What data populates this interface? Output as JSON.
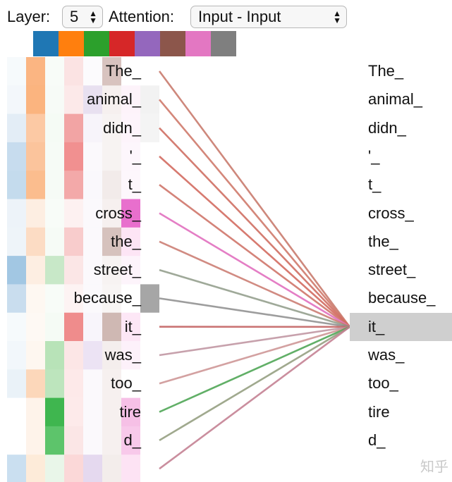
{
  "controls": {
    "layer_label": "Layer:",
    "layer_value": "5",
    "attention_label": "Attention:",
    "attention_value": "Input - Input"
  },
  "head_colors": [
    "#1f77b4",
    "#ff7f0e",
    "#2ca02c",
    "#d62728",
    "#9467bd",
    "#8c564b",
    "#e377c2",
    "#7f7f7f"
  ],
  "tokens_left": [
    "The_",
    "animal_",
    "didn_",
    "'_",
    "t_",
    "cross_",
    "the_",
    "street_",
    "because_",
    "it_",
    "was_",
    "too_",
    "tire",
    "d_",
    ""
  ],
  "tokens_right": [
    "The_",
    "animal_",
    "didn_",
    "'_",
    "t_",
    "cross_",
    "the_",
    "street_",
    "because_",
    "it_",
    "was_",
    "too_",
    "tire",
    "d_"
  ],
  "selected_token_index": 9,
  "selected_highlight_color": "#cfcfcf",
  "attention_lines": [
    {
      "from": 0,
      "color": "#c97b6e",
      "opacity": 0.9
    },
    {
      "from": 1,
      "color": "#cf7a6c",
      "opacity": 0.9
    },
    {
      "from": 2,
      "color": "#cf6f63",
      "opacity": 0.9
    },
    {
      "from": 3,
      "color": "#d36b60",
      "opacity": 0.9
    },
    {
      "from": 4,
      "color": "#cf766a",
      "opacity": 0.9
    },
    {
      "from": 5,
      "color": "#e377c2",
      "opacity": 0.95
    },
    {
      "from": 6,
      "color": "#c9776c",
      "opacity": 0.85
    },
    {
      "from": 7,
      "color": "#8e9a87",
      "opacity": 0.85
    },
    {
      "from": 8,
      "color": "#8c8c8c",
      "opacity": 0.85
    },
    {
      "from": 9,
      "color": "#c46565",
      "opacity": 0.9
    },
    {
      "from": 10,
      "color": "#b98a97",
      "opacity": 0.8
    },
    {
      "from": 11,
      "color": "#c88a8a",
      "opacity": 0.8
    },
    {
      "from": 12,
      "color": "#45a14c",
      "opacity": 0.85
    },
    {
      "from": 13,
      "color": "#8f9a7a",
      "opacity": 0.85
    },
    {
      "from": 14,
      "color": "#c17a8d",
      "opacity": 0.85
    }
  ],
  "heatmap": [
    [
      "#f6fafc",
      "#fbb582",
      "#f8fcf8",
      "#fbe3e3",
      "#fcfbfd",
      "#d8c3bf",
      "#ffffff",
      "#ffffff"
    ],
    [
      "#f3f7fb",
      "#fbb47f",
      "#f7fbf7",
      "#fce9e9",
      "#e8e0f0",
      "#f6f0ef",
      "#fdf3fa",
      "#f2f2f2"
    ],
    [
      "#e3edf6",
      "#fcc9a4",
      "#f5fbf5",
      "#f2a4a4",
      "#f7f4fa",
      "#f7f3f2",
      "#fdf4fb",
      "#f4f4f4"
    ],
    [
      "#c7dcee",
      "#fbc49c",
      "#f6fbf6",
      "#f19090",
      "#fbf9fc",
      "#f7f3f2",
      "#fdf6fc",
      "#ffffff"
    ],
    [
      "#c4dbed",
      "#fbbd8e",
      "#f6fbf6",
      "#f3a9a9",
      "#faf8fc",
      "#f2ebea",
      "#fdf7fc",
      "#ffffff"
    ],
    [
      "#edf3f9",
      "#fdeee2",
      "#f8fcf8",
      "#fdf1f1",
      "#fbf9fc",
      "#f6f0ef",
      "#e86fcd",
      "#ffffff"
    ],
    [
      "#eef4f9",
      "#fcdcc4",
      "#f6fbf6",
      "#f8cccc",
      "#fbf9fc",
      "#d6c2bd",
      "#fde5f5",
      "#ffffff"
    ],
    [
      "#a2c7e3",
      "#fdeee2",
      "#c8e8c8",
      "#fbe6e6",
      "#fbf9fc",
      "#f7f3f2",
      "#fdf4fb",
      "#ffffff"
    ],
    [
      "#c9ddee",
      "#fef8f2",
      "#f8fcf8",
      "#fdf3f3",
      "#fbf9fc",
      "#f8f5f4",
      "#ffffff",
      "#a6a6a6"
    ],
    [
      "#f6fafc",
      "#fef9f4",
      "#f5fbf5",
      "#ef8c8c",
      "#f8f5fb",
      "#cfb8b3",
      "#fde7f6",
      "#ffffff"
    ],
    [
      "#f2f7fb",
      "#fef7f0",
      "#b8e3b8",
      "#fce6e6",
      "#ece3f4",
      "#f4eeed",
      "#fdf1fa",
      "#ffffff"
    ],
    [
      "#eaf2f8",
      "#fcd7ba",
      "#bde5bd",
      "#fde9e9",
      "#fbf9fc",
      "#f6f0ef",
      "#ffffff",
      "#ffffff"
    ],
    [
      "#ffffff",
      "#fef3ea",
      "#3fb64f",
      "#fdeaea",
      "#fbf9fc",
      "#f6f0ef",
      "#f6c0e6",
      "#ffffff"
    ],
    [
      "#ffffff",
      "#fef3ea",
      "#5dc46b",
      "#fbe6e6",
      "#fbf9fc",
      "#f6f0ef",
      "#f8c9ea",
      "#ffffff"
    ],
    [
      "#cadff0",
      "#fdebd9",
      "#e9f6e9",
      "#fbd8d8",
      "#e5d9ef",
      "#f3edeb",
      "#fde3f4",
      "#ffffff"
    ]
  ],
  "watermark": "知乎"
}
